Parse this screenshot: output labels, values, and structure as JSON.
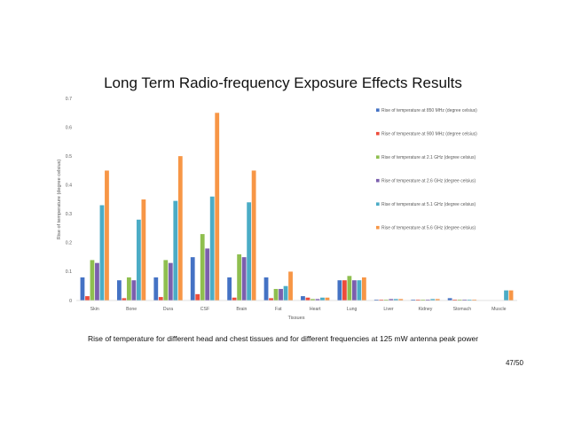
{
  "slide": {
    "title": "Long Term Radio-frequency Exposure Effects Results",
    "caption": "Rise of temperature for different head and chest tissues and for different frequencies at 125 mW antenna peak power",
    "page_number": "47/50"
  },
  "chart_data": {
    "type": "bar",
    "title": "",
    "xlabel": "Tissues",
    "ylabel": "Rise of temperature (degree celsius)",
    "ylim": [
      0,
      0.7
    ],
    "yticks": [
      "0",
      "0.1",
      "0.2",
      "0.3",
      "0.4",
      "0.5",
      "0.6",
      "0.7"
    ],
    "grid": false,
    "legend_position": "right",
    "categories": [
      "Skin",
      "Bone",
      "Dura",
      "CSF",
      "Brain",
      "Fat",
      "Heart",
      "Lung",
      "Liver",
      "Kidney",
      "Stomach",
      "Muscle"
    ],
    "series": [
      {
        "name": "Rise of temperature at 850 MHz (degree celsius)",
        "color": "#4472C4",
        "values": [
          0.08,
          0.07,
          0.08,
          0.15,
          0.08,
          0.08,
          0.015,
          0.07,
          0.003,
          0.003,
          0.008,
          0.0
        ]
      },
      {
        "name": "Rise of temperature at 900 MHz (degree celsius)",
        "color": "#ED4C3B",
        "values": [
          0.015,
          0.008,
          0.012,
          0.022,
          0.01,
          0.008,
          0.01,
          0.07,
          0.003,
          0.003,
          0.003,
          0.0
        ]
      },
      {
        "name": "Rise of temperature at 2.1 GHz (degree celsius)",
        "color": "#8FBF4F",
        "values": [
          0.14,
          0.08,
          0.14,
          0.23,
          0.16,
          0.04,
          0.005,
          0.085,
          0.003,
          0.003,
          0.003,
          0.0
        ]
      },
      {
        "name": "Rise of temperature at 2.6 GHz (degree celsius)",
        "color": "#7B5FAE",
        "values": [
          0.13,
          0.07,
          0.13,
          0.18,
          0.15,
          0.04,
          0.005,
          0.07,
          0.005,
          0.003,
          0.003,
          0.0
        ]
      },
      {
        "name": "Rise of temperature at 5.1 GHz (degree celsius)",
        "color": "#4BACC6",
        "values": [
          0.33,
          0.28,
          0.345,
          0.36,
          0.34,
          0.05,
          0.01,
          0.07,
          0.005,
          0.005,
          0.003,
          0.035
        ]
      },
      {
        "name": "Rise of temperature at 5.6 GHz (degree celsius)",
        "color": "#F79646",
        "values": [
          0.45,
          0.35,
          0.5,
          0.65,
          0.45,
          0.1,
          0.01,
          0.08,
          0.005,
          0.005,
          0.003,
          0.035
        ]
      }
    ]
  }
}
